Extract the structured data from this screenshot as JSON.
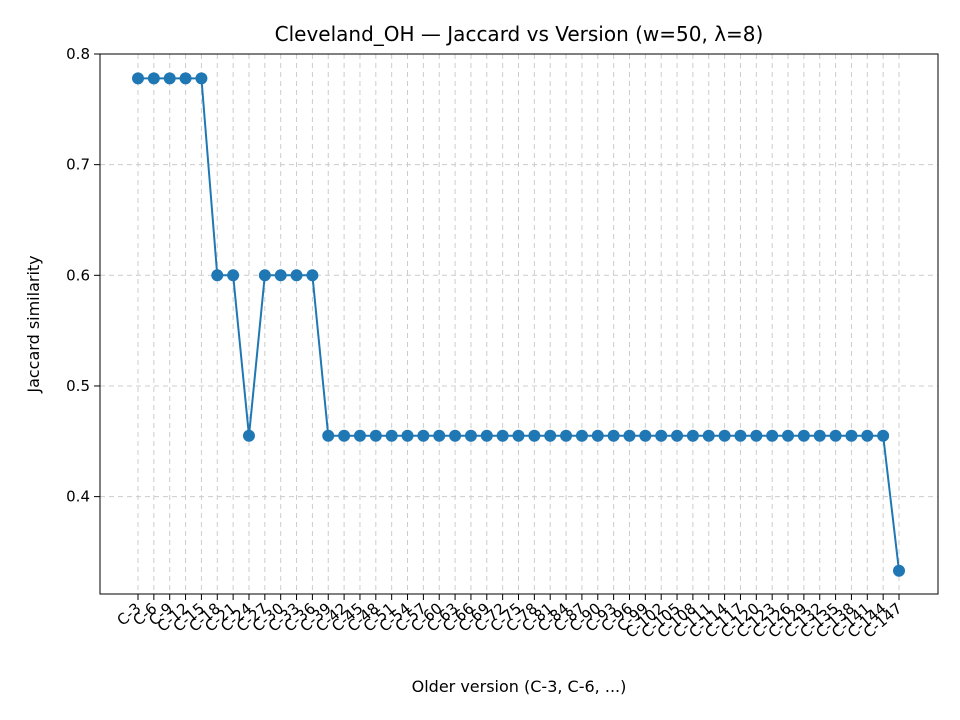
{
  "chart_data": {
    "type": "line",
    "title": "Cleveland_OH — Jaccard vs Version (w=50, λ=8)",
    "xlabel": "Older version (C-3, C-6, ...)",
    "ylabel": "Jaccard similarity",
    "ylim": [
      0.312,
      0.8
    ],
    "yticks": [
      "0.4",
      "0.5",
      "0.6",
      "0.7",
      "0.8"
    ],
    "grid": true,
    "legend": "none",
    "colors": {
      "line": "#1f77b4",
      "marker": "#1f77b4",
      "grid": "#cccccc"
    },
    "categories": [
      "C-3",
      "C-6",
      "C-9",
      "C-12",
      "C-15",
      "C-18",
      "C-21",
      "C-24",
      "C-27",
      "C-30",
      "C-33",
      "C-36",
      "C-39",
      "C-42",
      "C-45",
      "C-48",
      "C-51",
      "C-54",
      "C-57",
      "C-60",
      "C-63",
      "C-66",
      "C-69",
      "C-72",
      "C-75",
      "C-78",
      "C-81",
      "C-84",
      "C-87",
      "C-90",
      "C-93",
      "C-96",
      "C-99",
      "C-102",
      "C-105",
      "C-108",
      "C-111",
      "C-114",
      "C-117",
      "C-120",
      "C-123",
      "C-126",
      "C-129",
      "C-132",
      "C-135",
      "C-138",
      "C-141",
      "C-144",
      "C-147"
    ],
    "series": [
      {
        "values": [
          0.778,
          0.778,
          0.778,
          0.778,
          0.778,
          0.6,
          0.6,
          0.455,
          0.6,
          0.6,
          0.6,
          0.6,
          0.455,
          0.455,
          0.455,
          0.455,
          0.455,
          0.455,
          0.455,
          0.455,
          0.455,
          0.455,
          0.455,
          0.455,
          0.455,
          0.455,
          0.455,
          0.455,
          0.455,
          0.455,
          0.455,
          0.455,
          0.455,
          0.455,
          0.455,
          0.455,
          0.455,
          0.455,
          0.455,
          0.455,
          0.455,
          0.455,
          0.455,
          0.455,
          0.455,
          0.455,
          0.455,
          0.455,
          0.333
        ]
      }
    ]
  }
}
